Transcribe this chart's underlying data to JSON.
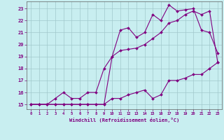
{
  "xlabel": "Windchill (Refroidissement éolien,°C)",
  "bg_color": "#c8eef0",
  "line_color": "#800080",
  "grid_color": "#a0c8cc",
  "xlim": [
    -0.5,
    23.5
  ],
  "ylim": [
    14.6,
    23.6
  ],
  "xticks": [
    0,
    1,
    2,
    3,
    4,
    5,
    6,
    7,
    8,
    9,
    10,
    11,
    12,
    13,
    14,
    15,
    16,
    17,
    18,
    19,
    20,
    21,
    22,
    23
  ],
  "yticks": [
    15,
    16,
    17,
    18,
    19,
    20,
    21,
    22,
    23
  ],
  "line1_x": [
    0,
    1,
    2,
    3,
    4,
    5,
    6,
    7,
    8,
    9,
    10,
    11,
    12,
    13,
    14,
    15,
    16,
    17,
    18,
    19,
    20,
    21,
    22,
    23
  ],
  "line1_y": [
    15,
    15,
    15,
    15,
    15,
    15,
    15,
    15,
    15,
    15,
    19.0,
    21.2,
    21.4,
    20.6,
    21.0,
    22.5,
    22.0,
    23.3,
    22.8,
    22.9,
    23.0,
    21.2,
    21.0,
    19.3
  ],
  "line2_x": [
    0,
    1,
    2,
    3,
    4,
    5,
    6,
    7,
    8,
    9,
    10,
    11,
    12,
    13,
    14,
    15,
    16,
    17,
    18,
    19,
    20,
    21,
    22,
    23
  ],
  "line2_y": [
    15,
    15,
    15,
    15.5,
    16.0,
    15.5,
    15.5,
    16.0,
    16.0,
    18.0,
    19.0,
    19.5,
    19.6,
    19.7,
    20.0,
    20.5,
    21.0,
    21.8,
    22.0,
    22.5,
    22.8,
    22.5,
    22.8,
    18.5
  ],
  "line3_x": [
    0,
    1,
    2,
    3,
    4,
    5,
    6,
    7,
    8,
    9,
    10,
    11,
    12,
    13,
    14,
    15,
    16,
    17,
    18,
    19,
    20,
    21,
    22,
    23
  ],
  "line3_y": [
    15,
    15,
    15,
    15,
    15,
    15,
    15,
    15,
    15,
    15,
    15.5,
    15.5,
    15.8,
    16.0,
    16.2,
    15.5,
    15.8,
    17.0,
    17.0,
    17.2,
    17.5,
    17.5,
    18.0,
    18.5
  ]
}
